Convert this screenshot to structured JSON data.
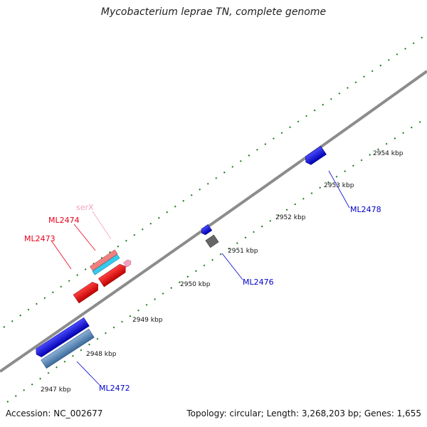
{
  "title": "Mycobacterium leprae TN, complete genome",
  "footer": {
    "accession": "Accession: NC_002677",
    "info": "Topology: circular; Length: 3,268,203 bp; Genes: 1,655"
  },
  "colors": {
    "backbone": "#8c8c8c",
    "tick": "#1a7a1a",
    "forward_cds_label": "#e8001c",
    "reverse_cds_label": "#0000cc",
    "rna_label": "#f4a0c0"
  },
  "ticks": {
    "labels": [
      "2947 kbp",
      "2948 kbp",
      "2949 kbp",
      "2950 kbp",
      "2951 kbp",
      "2952 kbp",
      "2953 kbp",
      "2954 kbp"
    ]
  },
  "features": [
    {
      "name": "ML2472",
      "strand": "reverse",
      "type": "CDS",
      "color": "#0000ee"
    },
    {
      "name": "ML2473",
      "strand": "forward",
      "type": "CDS",
      "color": "#ee0000"
    },
    {
      "name": "ML2474",
      "strand": "forward",
      "type": "CDS",
      "color": "#ee0000"
    },
    {
      "name": "serX",
      "strand": "forward",
      "type": "tRNA",
      "color": "#f4a0c0"
    },
    {
      "name": "ML2476",
      "strand": "reverse",
      "type": "CDS",
      "color": "#0000ee"
    },
    {
      "name": "ML2478",
      "strand": "reverse",
      "type": "CDS",
      "color": "#0000ee"
    }
  ],
  "feature_labels": [
    "ML2472",
    "ML2473",
    "ML2474",
    "serX",
    "ML2476",
    "ML2478"
  ]
}
